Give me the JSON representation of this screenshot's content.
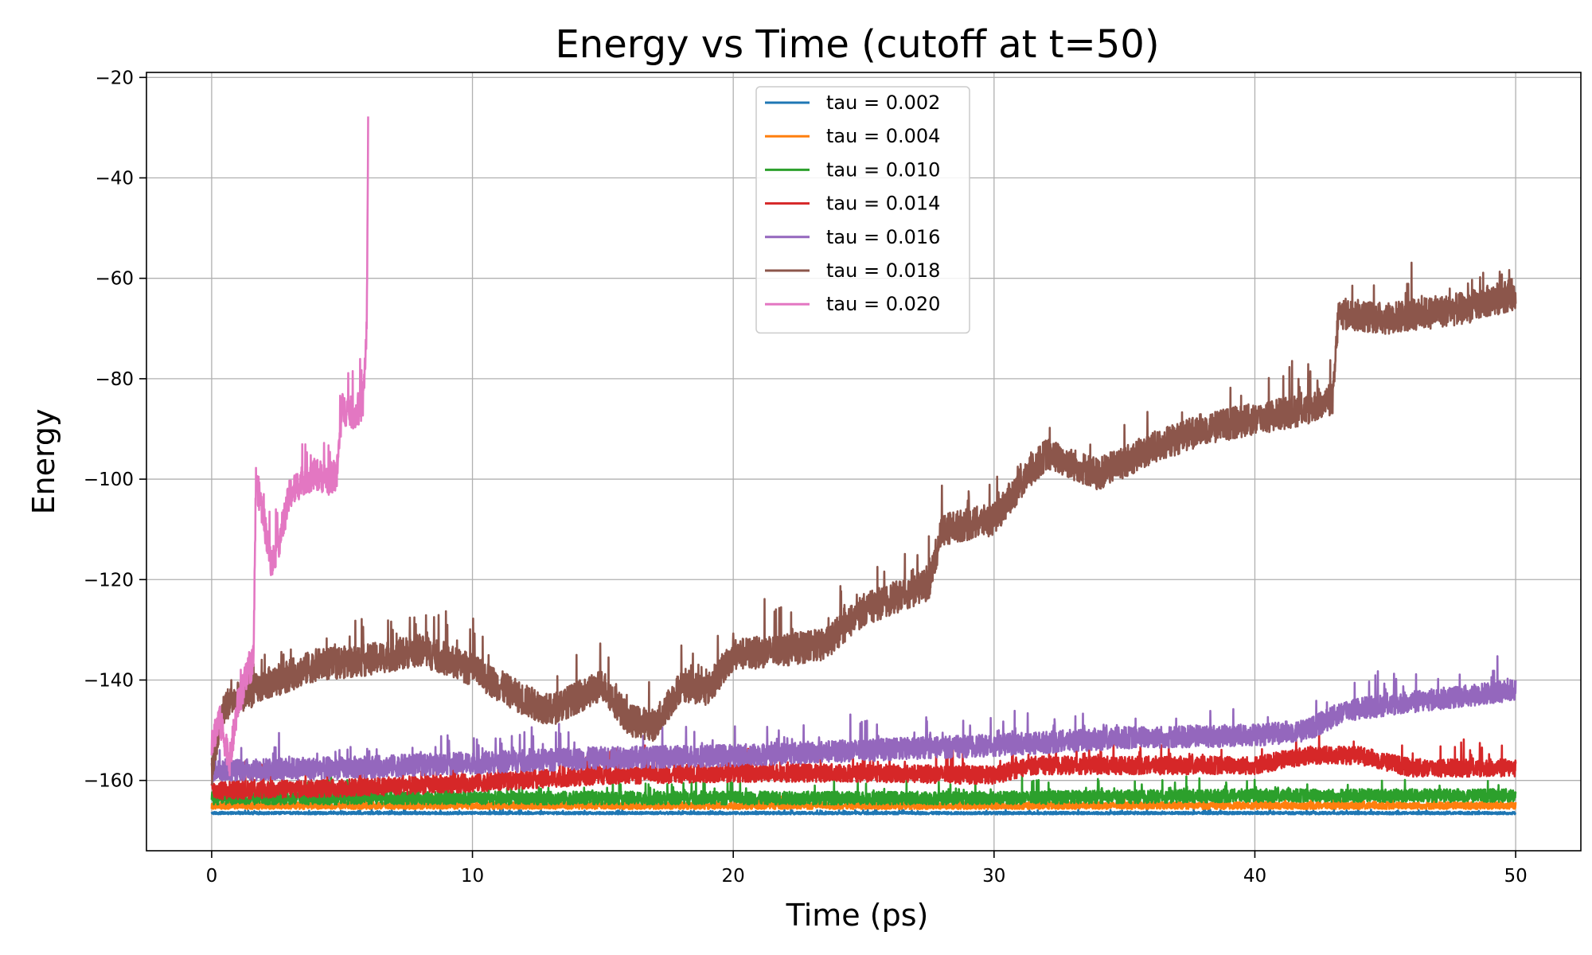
{
  "chart_data": {
    "type": "line",
    "title": "Energy vs Time (cutoff at t=50)",
    "xlabel": "Time (ps)",
    "ylabel": "Energy",
    "xlim": [
      -2.5,
      52.5
    ],
    "ylim": [
      -174,
      -19
    ],
    "xticks": [
      0,
      10,
      20,
      30,
      40,
      50
    ],
    "yticks": [
      -160,
      -140,
      -120,
      -100,
      -80,
      -60,
      -40,
      -20
    ],
    "xtick_labels": [
      "0",
      "10",
      "20",
      "30",
      "40",
      "50"
    ],
    "ytick_labels": [
      "−160",
      "−140",
      "−120",
      "−100",
      "−80",
      "−60",
      "−40",
      "−20"
    ],
    "grid": true,
    "legend_position": "top-center",
    "series": [
      {
        "name": "tau = 0.002",
        "color": "#1f77b4",
        "noise": 0.25,
        "x": [
          0,
          50
        ],
        "y": [
          -166.5,
          -166.5
        ]
      },
      {
        "name": "tau = 0.004",
        "color": "#ff7f0e",
        "noise": 0.7,
        "x": [
          0,
          50
        ],
        "y": [
          -165,
          -165
        ]
      },
      {
        "name": "tau = 0.010",
        "color": "#2ca02c",
        "noise": 1.3,
        "x": [
          0,
          10,
          20,
          30,
          40,
          50
        ],
        "y": [
          -163.5,
          -163.5,
          -163.5,
          -163.5,
          -163,
          -163
        ]
      },
      {
        "name": "tau = 0.014",
        "color": "#d62728",
        "noise": 1.8,
        "x": [
          0,
          5,
          10,
          15,
          20,
          25,
          30,
          31.5,
          35,
          40,
          42,
          44,
          46,
          50
        ],
        "y": [
          -162,
          -161.5,
          -160.5,
          -159,
          -158.5,
          -158.5,
          -159,
          -157,
          -157,
          -157,
          -155,
          -155,
          -157.5,
          -157.5
        ]
      },
      {
        "name": "tau = 0.016",
        "color": "#9467bd",
        "noise": 2.2,
        "x": [
          0,
          5,
          10,
          15,
          20,
          25,
          30,
          35,
          40,
          42,
          43.5,
          45,
          50
        ],
        "y": [
          -158,
          -157.5,
          -156.5,
          -155.5,
          -155,
          -154,
          -153,
          -151.5,
          -151,
          -150,
          -146,
          -145,
          -142
        ]
      },
      {
        "name": "tau = 0.018",
        "color": "#8c564b",
        "noise": 3.2,
        "x": [
          0,
          0.5,
          2,
          4,
          6,
          8,
          10,
          12,
          13,
          15,
          16,
          17,
          18,
          19,
          20,
          22,
          23.5,
          25,
          26,
          27.5,
          28,
          30,
          31,
          32,
          34,
          36,
          38,
          40,
          42,
          43,
          43.2,
          45,
          48,
          50
        ],
        "y": [
          -158,
          -145,
          -141,
          -137,
          -136,
          -134,
          -138,
          -144,
          -146,
          -141,
          -148,
          -149,
          -141,
          -142,
          -135,
          -134,
          -133,
          -126,
          -124,
          -121,
          -110,
          -108,
          -101,
          -95,
          -99,
          -94,
          -90,
          -88,
          -86,
          -84,
          -67,
          -68,
          -66,
          -63
        ]
      },
      {
        "name": "tau = 0.020",
        "color": "#e377c2",
        "noise": 3.2,
        "x": [
          0,
          0.3,
          0.7,
          1.0,
          1.3,
          1.6,
          1.7,
          2.0,
          2.3,
          2.6,
          3.0,
          3.5,
          4.0,
          4.5,
          4.8,
          5.0,
          5.5,
          5.8,
          5.95,
          6.0
        ],
        "y": [
          -152,
          -148,
          -156,
          -145,
          -140,
          -136,
          -100,
          -108,
          -117,
          -112,
          -103,
          -100,
          -99,
          -100,
          -99,
          -86,
          -87,
          -85,
          -70,
          -27
        ]
      }
    ]
  }
}
